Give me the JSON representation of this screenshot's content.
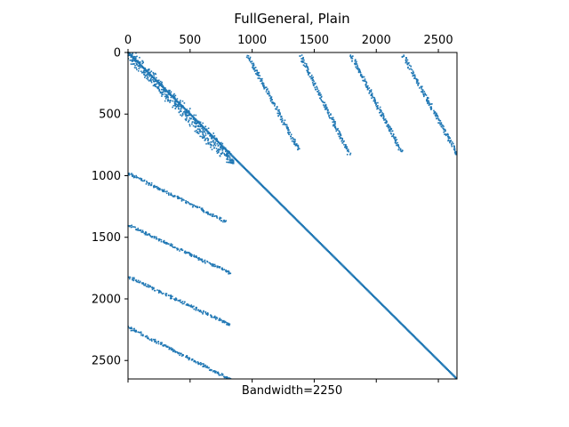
{
  "chart_data": {
    "type": "scatter",
    "subtype": "sparsity-pattern",
    "title": "FullGeneral, Plain",
    "xlabel": "Bandwidth=2250",
    "ylabel": "",
    "xlim": [
      0,
      2650
    ],
    "ylim": [
      2650,
      0
    ],
    "x_axis_position": "top",
    "x_ticks": [
      0,
      500,
      1000,
      1500,
      2000,
      2500
    ],
    "y_ticks": [
      0,
      500,
      1000,
      1500,
      2000,
      2500
    ],
    "x_tick_labels": [
      "0",
      "500",
      "1000",
      "1500",
      "2000",
      "2500"
    ],
    "y_tick_labels": [
      "0",
      "500",
      "1000",
      "1500",
      "2000",
      "2500"
    ],
    "grid": false,
    "legend": "none",
    "marker_color": "#1f77b4",
    "structure": {
      "n": 2650,
      "dense_block_end": 850,
      "main_diagonal": {
        "x": [
          0,
          2650
        ],
        "y": [
          0,
          2650
        ]
      },
      "near_diagonal_band": {
        "x": [
          0,
          800
        ],
        "y": [
          0,
          850
        ],
        "width": 50
      },
      "arrow_tip": {
        "x": 850,
        "y": 880
      },
      "upper_bands": [
        {
          "x": [
            970,
            1370
          ],
          "y": [
            30,
            780
          ]
        },
        {
          "x": [
            1390,
            1780
          ],
          "y": [
            30,
            820
          ]
        },
        {
          "x": [
            1800,
            2200
          ],
          "y": [
            30,
            800
          ]
        },
        {
          "x": [
            2220,
            2650
          ],
          "y": [
            30,
            820
          ]
        }
      ],
      "lower_bands": [
        {
          "x": [
            0,
            780
          ],
          "y": [
            980,
            1370
          ]
        },
        {
          "x": [
            0,
            820
          ],
          "y": [
            1400,
            1790
          ]
        },
        {
          "x": [
            0,
            820
          ],
          "y": [
            1820,
            2210
          ]
        },
        {
          "x": [
            0,
            820
          ],
          "y": [
            2230,
            2650
          ]
        }
      ]
    }
  }
}
